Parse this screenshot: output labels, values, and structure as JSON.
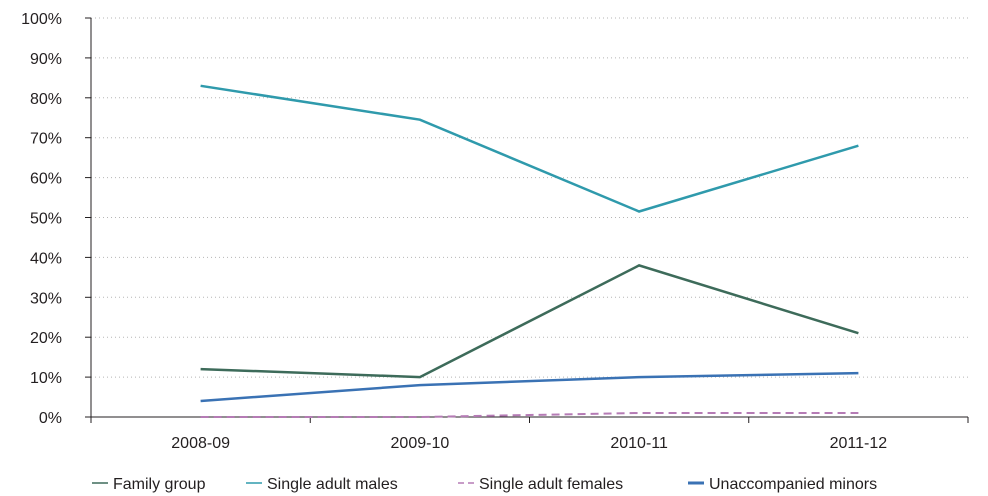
{
  "chart_data": {
    "type": "line",
    "title": "",
    "xlabel": "",
    "ylabel": "",
    "categories": [
      "2008-09",
      "2009-10",
      "2010-11",
      "2011-12"
    ],
    "ylim": [
      0,
      100
    ],
    "yticks": [
      0,
      10,
      20,
      30,
      40,
      50,
      60,
      70,
      80,
      90,
      100
    ],
    "ytick_labels": [
      "0%",
      "10%",
      "20%",
      "30%",
      "40%",
      "50%",
      "60%",
      "70%",
      "80%",
      "90%",
      "100%"
    ],
    "grid": "horizontal dotted",
    "legend_position": "bottom",
    "series": [
      {
        "name": "Family group",
        "values": [
          12,
          10,
          38,
          21
        ],
        "color": "#3d6b5a",
        "dash": "solid"
      },
      {
        "name": "Single adult males",
        "values": [
          83,
          74.5,
          51.5,
          68
        ],
        "color": "#2f9aac",
        "dash": "solid"
      },
      {
        "name": "Single adult females",
        "values": [
          0,
          0,
          1,
          1
        ],
        "color": "#b57bb5",
        "dash": "dashed"
      },
      {
        "name": "Unaccompanied minors",
        "values": [
          4,
          8,
          10,
          11
        ],
        "color": "#3a72b4",
        "dash": "solid"
      }
    ]
  }
}
